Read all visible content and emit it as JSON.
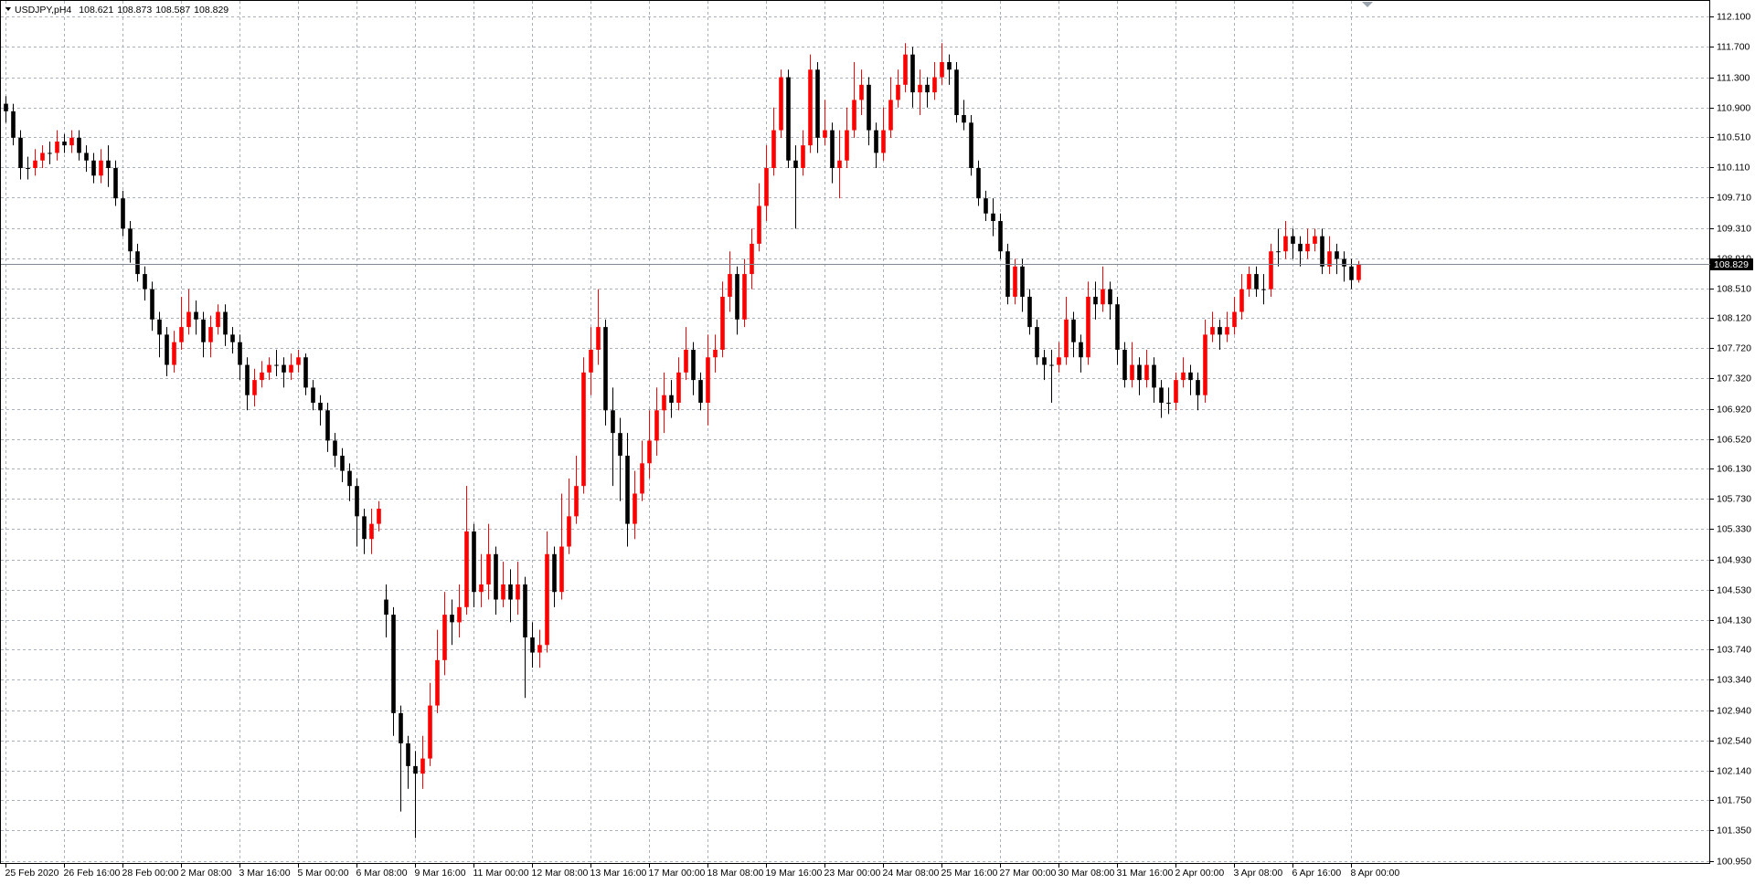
{
  "chart_data": {
    "type": "candlestick",
    "title": "USDJPY,pH4",
    "up_color": "#ff0000",
    "down_color": "#000000",
    "grid": true,
    "last_price": 108.829,
    "ylim": [
      100.92,
      112.32
    ],
    "yticks": [
      {
        "value": 112.1,
        "label": "112.100"
      },
      {
        "value": 111.7,
        "label": "111.700"
      },
      {
        "value": 111.3,
        "label": "111.300"
      },
      {
        "value": 110.9,
        "label": "110.900"
      },
      {
        "value": 110.51,
        "label": "110.510"
      },
      {
        "value": 110.11,
        "label": "110.110"
      },
      {
        "value": 109.71,
        "label": "109.710"
      },
      {
        "value": 109.31,
        "label": "109.310"
      },
      {
        "value": 108.91,
        "label": "108.910"
      },
      {
        "value": 108.51,
        "label": "108.510"
      },
      {
        "value": 108.12,
        "label": "108.120"
      },
      {
        "value": 107.72,
        "label": "107.720"
      },
      {
        "value": 107.32,
        "label": "107.320"
      },
      {
        "value": 106.92,
        "label": "106.920"
      },
      {
        "value": 106.52,
        "label": "106.520"
      },
      {
        "value": 106.13,
        "label": "106.130"
      },
      {
        "value": 105.73,
        "label": "105.730"
      },
      {
        "value": 105.33,
        "label": "105.330"
      },
      {
        "value": 104.93,
        "label": "104.930"
      },
      {
        "value": 104.53,
        "label": "104.530"
      },
      {
        "value": 104.13,
        "label": "104.130"
      },
      {
        "value": 103.74,
        "label": "103.740"
      },
      {
        "value": 103.34,
        "label": "103.340"
      },
      {
        "value": 102.94,
        "label": "102.940"
      },
      {
        "value": 102.54,
        "label": "102.540"
      },
      {
        "value": 102.14,
        "label": "102.140"
      },
      {
        "value": 101.75,
        "label": "101.750"
      },
      {
        "value": 101.35,
        "label": "101.350"
      },
      {
        "value": 100.95,
        "label": "100.950"
      }
    ],
    "categories": [
      "25 Feb 2020",
      null,
      null,
      null,
      null,
      null,
      null,
      null,
      "26 Feb 16:00",
      null,
      null,
      null,
      null,
      null,
      null,
      null,
      "28 Feb 00:00",
      null,
      null,
      null,
      null,
      null,
      null,
      null,
      "2 Mar 08:00",
      null,
      null,
      null,
      null,
      null,
      null,
      null,
      "3 Mar 16:00",
      null,
      null,
      null,
      null,
      null,
      null,
      null,
      "5 Mar 00:00",
      null,
      null,
      null,
      null,
      null,
      null,
      null,
      "6 Mar 08:00",
      null,
      null,
      null,
      null,
      null,
      null,
      null,
      "9 Mar 16:00",
      null,
      null,
      null,
      null,
      null,
      null,
      null,
      "11 Mar 00:00",
      null,
      null,
      null,
      null,
      null,
      null,
      null,
      "12 Mar 08:00",
      null,
      null,
      null,
      null,
      null,
      null,
      null,
      "13 Mar 16:00",
      null,
      null,
      null,
      null,
      null,
      null,
      null,
      "17 Mar 00:00",
      null,
      null,
      null,
      null,
      null,
      null,
      null,
      "18 Mar 08:00",
      null,
      null,
      null,
      null,
      null,
      null,
      null,
      "19 Mar 16:00",
      null,
      null,
      null,
      null,
      null,
      null,
      null,
      "23 Mar 00:00",
      null,
      null,
      null,
      null,
      null,
      null,
      null,
      "24 Mar 08:00",
      null,
      null,
      null,
      null,
      null,
      null,
      null,
      "25 Mar 16:00",
      null,
      null,
      null,
      null,
      null,
      null,
      null,
      "27 Mar 00:00",
      null,
      null,
      null,
      null,
      null,
      null,
      null,
      "30 Mar 08:00",
      null,
      null,
      null,
      null,
      null,
      null,
      null,
      "31 Mar 16:00",
      null,
      null,
      null,
      null,
      null,
      null,
      null,
      "2 Apr 00:00",
      null,
      null,
      null,
      null,
      null,
      null,
      null,
      "3 Apr 08:00",
      null,
      null,
      null,
      null,
      null,
      null,
      null,
      "6 Apr 16:00",
      null,
      null,
      null,
      null,
      null,
      null,
      null,
      "8 Apr 00:00",
      null
    ],
    "open": [
      110.95,
      110.85,
      110.5,
      110.1,
      110.1,
      110.2,
      110.3,
      110.3,
      110.45,
      110.4,
      110.5,
      110.3,
      110.2,
      110.0,
      110.2,
      110.1,
      109.7,
      109.3,
      109.0,
      108.7,
      108.5,
      108.1,
      107.9,
      107.5,
      107.8,
      108.0,
      108.2,
      108.1,
      107.8,
      108.0,
      108.2,
      107.9,
      107.8,
      107.5,
      107.1,
      107.3,
      107.4,
      107.5,
      107.5,
      107.4,
      107.5,
      107.6,
      107.2,
      107.0,
      106.9,
      106.5,
      106.3,
      106.1,
      105.9,
      105.5,
      105.2,
      105.4,
      104.4,
      104.2,
      102.9,
      102.5,
      102.2,
      102.1,
      102.3,
      103.0,
      103.6,
      104.2,
      104.1,
      104.3,
      105.3,
      104.5,
      104.6,
      105.0,
      104.4,
      104.6,
      104.4,
      104.6,
      103.9,
      103.7,
      103.8,
      105.0,
      104.5,
      105.1,
      105.5,
      105.9,
      107.4,
      107.7,
      108.0,
      106.9,
      106.6,
      106.3,
      105.4,
      105.8,
      106.2,
      106.5,
      106.9,
      107.1,
      107.0,
      107.4,
      107.7,
      107.3,
      107.0,
      107.6,
      107.7,
      108.4,
      108.7,
      108.1,
      108.7,
      109.1,
      109.6,
      110.1,
      110.6,
      111.3,
      110.2,
      110.1,
      110.4,
      111.4,
      110.5,
      110.6,
      110.1,
      110.2,
      110.6,
      111.0,
      111.2,
      110.6,
      110.3,
      110.6,
      111.0,
      111.2,
      111.6,
      111.1,
      111.2,
      111.1,
      111.3,
      111.5,
      111.4,
      110.8,
      110.7,
      110.1,
      109.7,
      109.5,
      109.4,
      109.0,
      108.4,
      108.8,
      108.4,
      108.0,
      107.6,
      107.5,
      107.5,
      107.6,
      108.1,
      107.8,
      107.6,
      108.4,
      108.3,
      108.5,
      108.3,
      107.7,
      107.3,
      107.5,
      107.3,
      107.5,
      107.2,
      107.0,
      107.0,
      107.3,
      107.4,
      107.3,
      107.1,
      107.9,
      108.0,
      107.9,
      108.0,
      108.2,
      108.5,
      108.7,
      108.5,
      108.5,
      109.0,
      109.0,
      109.2,
      109.1,
      109.0,
      109.1,
      109.2,
      108.8,
      109.0,
      108.9,
      108.8,
      108.621
    ],
    "high": [
      111.05,
      110.95,
      110.6,
      110.25,
      110.35,
      110.4,
      110.45,
      110.6,
      110.55,
      110.6,
      110.6,
      110.4,
      110.3,
      110.35,
      110.4,
      110.2,
      109.8,
      109.4,
      109.1,
      108.8,
      108.6,
      108.2,
      108.0,
      107.95,
      108.4,
      108.5,
      108.35,
      108.2,
      108.15,
      108.3,
      108.3,
      108.0,
      107.9,
      107.6,
      107.45,
      107.55,
      107.6,
      107.7,
      107.6,
      107.65,
      107.7,
      107.65,
      107.3,
      107.1,
      107.0,
      106.6,
      106.4,
      106.2,
      106.0,
      105.6,
      105.6,
      105.7,
      104.6,
      104.3,
      103.0,
      102.6,
      102.4,
      102.6,
      103.3,
      104.0,
      104.5,
      104.4,
      104.6,
      105.9,
      105.4,
      105.0,
      105.4,
      105.1,
      104.9,
      104.8,
      104.9,
      104.7,
      104.1,
      104.0,
      105.3,
      105.1,
      105.8,
      106.0,
      106.3,
      107.6,
      108.0,
      108.5,
      108.1,
      107.2,
      106.8,
      106.6,
      106.1,
      106.5,
      106.9,
      107.2,
      107.4,
      107.3,
      107.6,
      108.0,
      107.8,
      107.4,
      107.9,
      107.9,
      108.6,
      109.0,
      108.8,
      108.9,
      109.3,
      109.9,
      110.4,
      110.9,
      111.4,
      111.4,
      110.4,
      110.6,
      111.6,
      111.5,
      111.0,
      110.7,
      110.6,
      110.9,
      111.5,
      111.4,
      111.3,
      110.7,
      110.9,
      111.3,
      111.4,
      111.75,
      111.7,
      111.4,
      111.3,
      111.5,
      111.75,
      111.6,
      111.5,
      111.0,
      110.8,
      110.2,
      109.8,
      109.7,
      109.5,
      109.1,
      108.9,
      108.9,
      108.5,
      108.1,
      107.7,
      107.7,
      107.8,
      108.4,
      108.2,
      107.9,
      108.6,
      108.6,
      108.8,
      108.6,
      108.4,
      107.8,
      107.8,
      107.6,
      107.7,
      107.6,
      107.3,
      107.2,
      107.4,
      107.6,
      107.5,
      107.4,
      108.1,
      108.2,
      108.1,
      108.2,
      108.4,
      108.7,
      108.8,
      108.8,
      108.7,
      109.1,
      109.3,
      109.4,
      109.3,
      109.2,
      109.3,
      109.3,
      109.3,
      109.2,
      109.1,
      109.0,
      108.9,
      108.873
    ],
    "low": [
      110.7,
      110.4,
      109.95,
      109.95,
      110.0,
      110.1,
      110.15,
      110.2,
      110.3,
      110.3,
      110.2,
      110.05,
      109.9,
      109.9,
      109.85,
      109.6,
      109.2,
      108.85,
      108.6,
      108.35,
      107.95,
      107.6,
      107.35,
      107.4,
      107.7,
      107.9,
      107.9,
      107.6,
      107.6,
      107.9,
      107.75,
      107.65,
      107.3,
      106.9,
      106.95,
      107.2,
      107.3,
      107.35,
      107.2,
      107.3,
      107.4,
      107.1,
      106.9,
      106.7,
      106.35,
      106.15,
      105.95,
      105.7,
      105.1,
      105.0,
      105.0,
      105.3,
      103.9,
      102.6,
      101.6,
      101.9,
      101.25,
      101.9,
      102.2,
      102.9,
      103.4,
      103.8,
      103.9,
      104.2,
      104.3,
      104.3,
      104.4,
      104.2,
      104.3,
      104.1,
      104.2,
      103.1,
      103.5,
      103.5,
      103.7,
      104.3,
      104.4,
      105.0,
      105.4,
      105.8,
      107.1,
      107.5,
      106.7,
      105.9,
      105.7,
      105.1,
      105.2,
      105.7,
      106.0,
      106.3,
      106.6,
      106.8,
      106.9,
      107.3,
      107.1,
      106.9,
      106.7,
      107.4,
      107.6,
      108.2,
      107.9,
      108.0,
      108.5,
      109.0,
      109.4,
      110.0,
      110.5,
      110.1,
      109.3,
      110.0,
      110.3,
      110.3,
      110.4,
      109.9,
      109.7,
      110.1,
      110.5,
      110.8,
      110.4,
      110.1,
      110.2,
      110.5,
      110.9,
      111.1,
      110.9,
      110.8,
      110.9,
      111.0,
      111.2,
      111.2,
      110.7,
      110.6,
      110.0,
      109.6,
      109.4,
      109.2,
      108.9,
      108.3,
      108.3,
      108.2,
      107.9,
      107.5,
      107.3,
      107.0,
      107.4,
      107.5,
      107.6,
      107.4,
      107.5,
      108.1,
      108.2,
      108.1,
      107.5,
      107.2,
      107.2,
      107.1,
      107.2,
      107.0,
      106.8,
      106.85,
      106.9,
      107.2,
      107.1,
      106.9,
      107.0,
      107.8,
      107.7,
      107.8,
      107.9,
      108.1,
      108.4,
      108.4,
      108.3,
      108.4,
      108.8,
      108.9,
      108.9,
      108.8,
      108.9,
      109.0,
      108.7,
      108.7,
      108.7,
      108.6,
      108.5,
      108.587
    ],
    "close": [
      110.85,
      110.5,
      110.1,
      110.1,
      110.2,
      110.3,
      110.3,
      110.45,
      110.4,
      110.5,
      110.3,
      110.2,
      110.0,
      110.2,
      110.1,
      109.7,
      109.3,
      109.0,
      108.7,
      108.5,
      108.1,
      107.9,
      107.5,
      107.8,
      108.0,
      108.2,
      108.1,
      107.8,
      108.0,
      108.2,
      107.9,
      107.8,
      107.5,
      107.1,
      107.3,
      107.4,
      107.5,
      107.5,
      107.4,
      107.5,
      107.6,
      107.2,
      107.0,
      106.9,
      106.5,
      106.3,
      106.1,
      105.9,
      105.5,
      105.2,
      105.4,
      105.6,
      104.2,
      102.9,
      102.5,
      102.2,
      102.1,
      102.3,
      103.0,
      103.6,
      104.2,
      104.1,
      104.3,
      105.3,
      104.5,
      104.6,
      105.0,
      104.4,
      104.6,
      104.4,
      104.6,
      103.9,
      103.7,
      103.8,
      105.0,
      104.5,
      105.1,
      105.5,
      105.9,
      107.4,
      107.7,
      108.0,
      106.9,
      106.6,
      106.3,
      105.4,
      105.8,
      106.2,
      106.5,
      106.9,
      107.1,
      107.0,
      107.4,
      107.7,
      107.3,
      107.0,
      107.6,
      107.7,
      108.4,
      108.7,
      108.1,
      108.7,
      109.1,
      109.6,
      110.1,
      110.6,
      111.3,
      110.2,
      110.1,
      110.4,
      111.4,
      110.5,
      110.6,
      110.1,
      110.2,
      110.6,
      111.0,
      111.2,
      110.6,
      110.3,
      110.6,
      111.0,
      111.2,
      111.6,
      111.1,
      111.2,
      111.1,
      111.3,
      111.5,
      111.4,
      110.8,
      110.7,
      110.1,
      109.7,
      109.5,
      109.4,
      109.0,
      108.4,
      108.8,
      108.4,
      108.0,
      107.6,
      107.5,
      107.5,
      107.6,
      108.1,
      107.8,
      107.6,
      108.4,
      108.3,
      108.5,
      108.3,
      107.7,
      107.3,
      107.5,
      107.3,
      107.5,
      107.2,
      107.0,
      107.0,
      107.3,
      107.4,
      107.3,
      107.1,
      107.9,
      108.0,
      107.9,
      108.0,
      108.2,
      108.5,
      108.7,
      108.5,
      108.5,
      109.0,
      109.0,
      109.2,
      109.1,
      109.0,
      109.1,
      109.2,
      108.8,
      109.0,
      108.9,
      108.8,
      108.62,
      108.829
    ]
  }
}
